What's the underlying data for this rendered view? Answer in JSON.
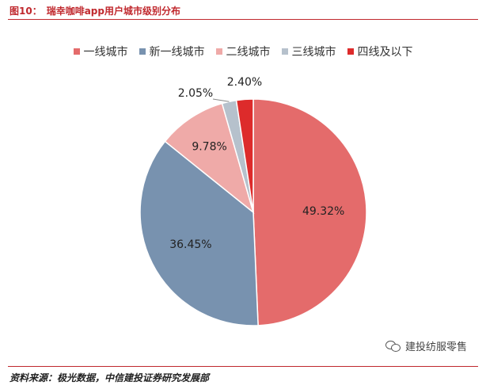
{
  "figure": {
    "number": "图10：",
    "title": "瑞幸咖啡app用户城市级别分布"
  },
  "source": "资料来源：极光数据，中信建投证券研究发展部",
  "watermark": "建投纺服零售",
  "chart_data": {
    "type": "pie",
    "title": "瑞幸咖啡app用户城市级别分布",
    "legend_position": "top",
    "categories": [
      "一线城市",
      "新一线城市",
      "二线城市",
      "三线城市",
      "四线及以下"
    ],
    "values": [
      49.32,
      36.45,
      9.78,
      2.05,
      2.4
    ],
    "labels": [
      "49.32%",
      "36.45%",
      "9.78%",
      "2.05%",
      "2.40%"
    ],
    "colors": [
      "#e46b6b",
      "#7892af",
      "#efaaa8",
      "#b6c1cc",
      "#dd2b2b"
    ],
    "start": "12 o'clock",
    "direction": "clockwise"
  }
}
